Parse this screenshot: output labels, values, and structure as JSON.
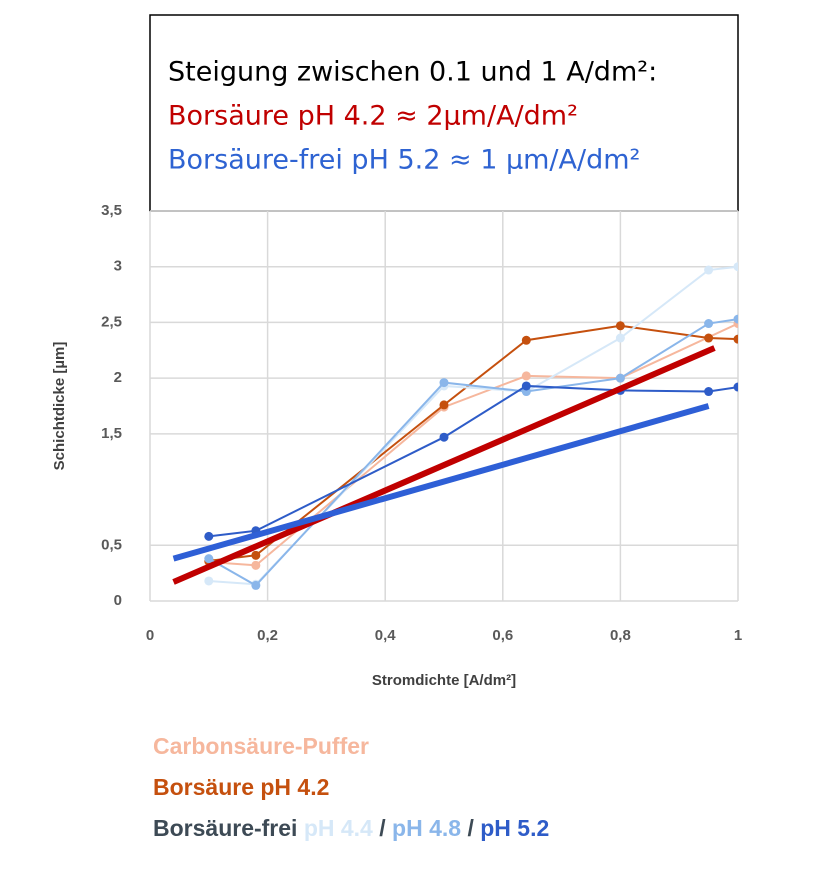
{
  "chart_data": {
    "type": "line",
    "annotation": [
      {
        "text": "Steigung zwischen 0.1 und 1 A/dm²:",
        "color": "#000000"
      },
      {
        "text": "Borsäure pH 4.2 ≈ 2µm/A/dm²",
        "color": "#c00000"
      },
      {
        "text": "Borsäure-frei pH 5.2 ≈ 1 µm/A/dm²",
        "color": "#2e63d2"
      }
    ],
    "x_label": "Stromdichte [A/dm²]",
    "y_label": "Schichtdicke [µm]",
    "xlim": [
      0,
      1
    ],
    "xticks": [
      0,
      {
        "value": 0.2,
        "label": "0,2"
      },
      {
        "value": 0.4,
        "label": "0,4"
      },
      {
        "value": 0.6,
        "label": "0,6"
      },
      {
        "value": 0.8,
        "label": "0,8"
      },
      1
    ],
    "ylim": [
      0,
      3.5
    ],
    "yticks": [
      0,
      {
        "value": 0.5,
        "label": "0,5"
      },
      {
        "value": 1.5,
        "label": "1,5"
      },
      2,
      {
        "value": 2.5,
        "label": "2,5"
      },
      3,
      {
        "value": 3.5,
        "label": "3,5"
      }
    ],
    "grid": true,
    "series": [
      {
        "name": "Carbonsäure-Puffer",
        "color": "#f6b79d",
        "x": [
          0.1,
          0.18,
          0.5,
          0.64,
          0.8,
          1.0
        ],
        "values": [
          0.35,
          0.32,
          1.74,
          2.02,
          2.0,
          2.49
        ]
      },
      {
        "name": "Borsäure pH 4.2",
        "color": "#c5500e",
        "x": [
          0.1,
          0.18,
          0.5,
          0.64,
          0.8,
          0.95,
          1.0
        ],
        "values": [
          0.36,
          0.41,
          1.76,
          2.34,
          2.47,
          2.36,
          2.35
        ]
      },
      {
        "name": "pH 4.4",
        "color": "#d6e8f8",
        "x": [
          0.1,
          0.18,
          0.5,
          0.64,
          0.8,
          0.95,
          1.0
        ],
        "values": [
          0.18,
          0.15,
          1.93,
          1.88,
          2.36,
          2.97,
          3.0
        ]
      },
      {
        "name": "pH 4.8",
        "color": "#8ab6ea",
        "x": [
          0.1,
          0.18,
          0.5,
          0.64,
          0.8,
          0.95,
          1.0
        ],
        "values": [
          0.38,
          0.14,
          1.96,
          1.88,
          2.0,
          2.49,
          2.53
        ]
      },
      {
        "name": "pH 5.2",
        "color": "#2e5cc8",
        "x": [
          0.1,
          0.18,
          0.5,
          0.64,
          0.8,
          0.95,
          1.0
        ],
        "values": [
          0.58,
          0.63,
          1.47,
          1.93,
          1.89,
          1.88,
          1.92
        ]
      }
    ],
    "trend_lines": [
      {
        "color": "#c00000",
        "x": [
          0.04,
          0.96
        ],
        "values": [
          0.17,
          2.27
        ]
      },
      {
        "color": "#2e5fd6",
        "x": [
          0.04,
          0.95
        ],
        "values": [
          0.38,
          1.75
        ]
      }
    ],
    "legend_group_label": "Borsäure-frei",
    "legend_group_color": "#3d4a55",
    "legend_separator": "/"
  }
}
